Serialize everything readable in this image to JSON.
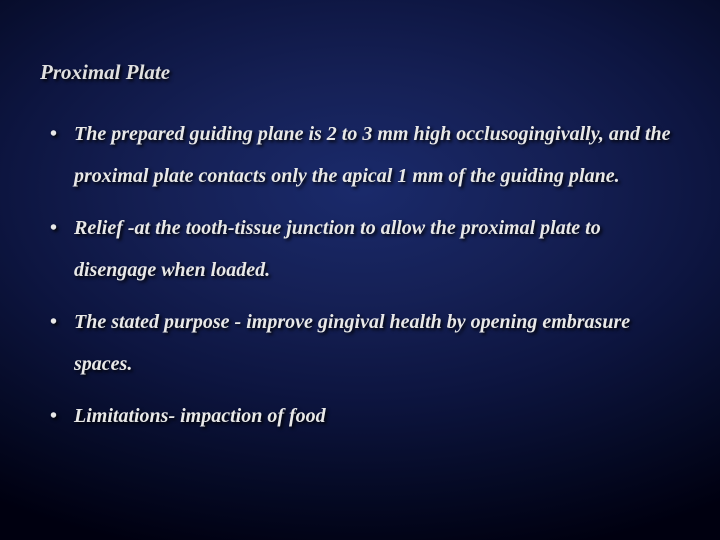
{
  "slide": {
    "title": "Proximal Plate",
    "bullets": [
      "The prepared guiding plane is 2 to 3 mm high occlusogingivally, and the proximal plate contacts only the apical 1 mm of the guiding plane.",
      "Relief -at the tooth-tissue junction to  allow the proximal plate to disengage when loaded.",
      "The stated purpose - improve gingival health by opening embrasure spaces.",
      "Limitations- impaction of food"
    ],
    "colors": {
      "text": "#e8e8e8",
      "background_center": "#1a2a6b",
      "background_edge": "#000010"
    },
    "typography": {
      "font_family": "Times New Roman",
      "title_fontsize": 21,
      "bullet_fontsize": 20,
      "font_style": "italic",
      "font_weight": "bold",
      "line_height": 2.1
    }
  }
}
